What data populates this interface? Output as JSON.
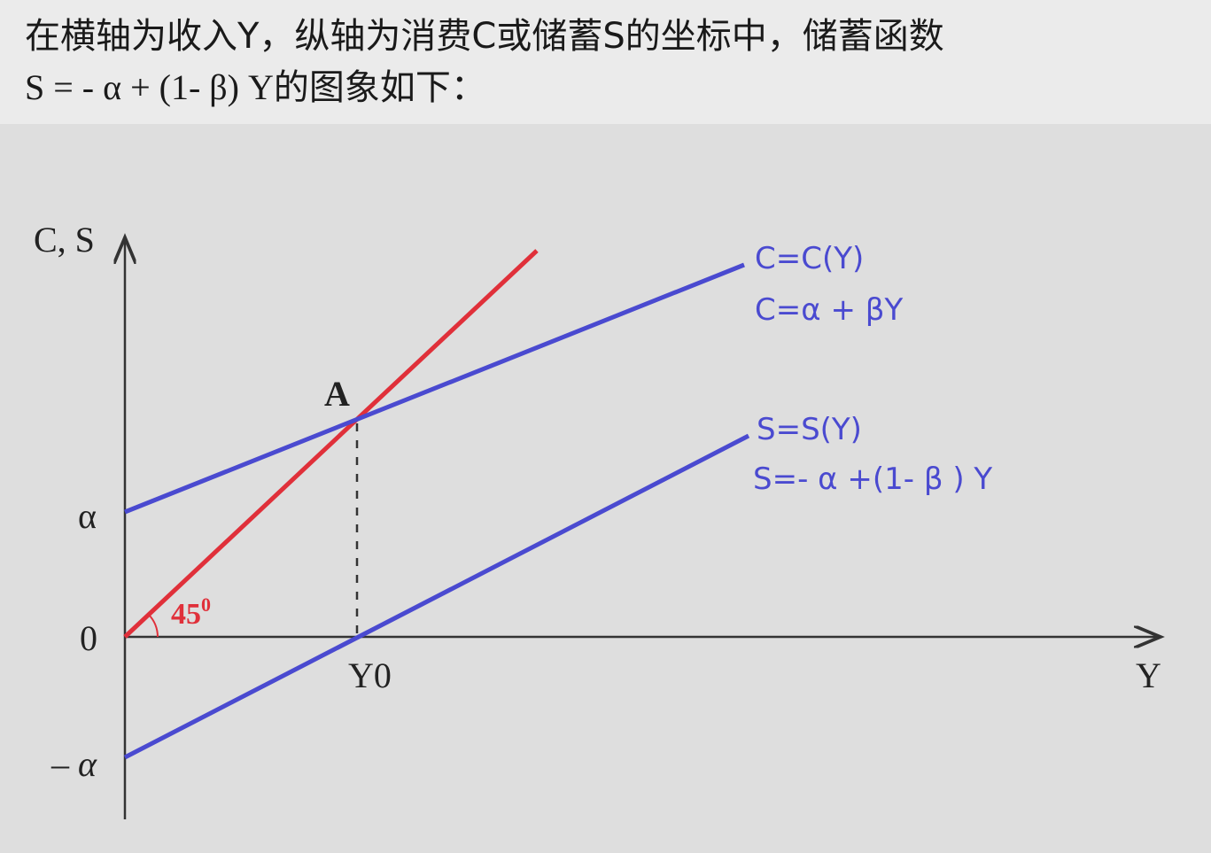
{
  "title": {
    "line1": "在横轴为收入Y，纵轴为消费C或储蓄S的坐标中，储蓄函数",
    "line2": "S = - α + (1- β) Y的图象如下："
  },
  "diagram": {
    "y_axis_label": "C, S",
    "x_axis_label": "Y",
    "origin_label": "0",
    "alpha_label": "α",
    "neg_alpha_label": "– α",
    "point_label": "A",
    "y0_label": "Y0",
    "angle_label": "45",
    "angle_sup": "0",
    "consumption": {
      "name": "C=C(Y)",
      "equation": "C=α + βY"
    },
    "saving": {
      "name": "S=S(Y)",
      "equation": "S=- α +(1- β ) Y"
    },
    "colors": {
      "line45": "#e0303a",
      "curves": "#4a4ad0",
      "axes": "#333333"
    }
  }
}
